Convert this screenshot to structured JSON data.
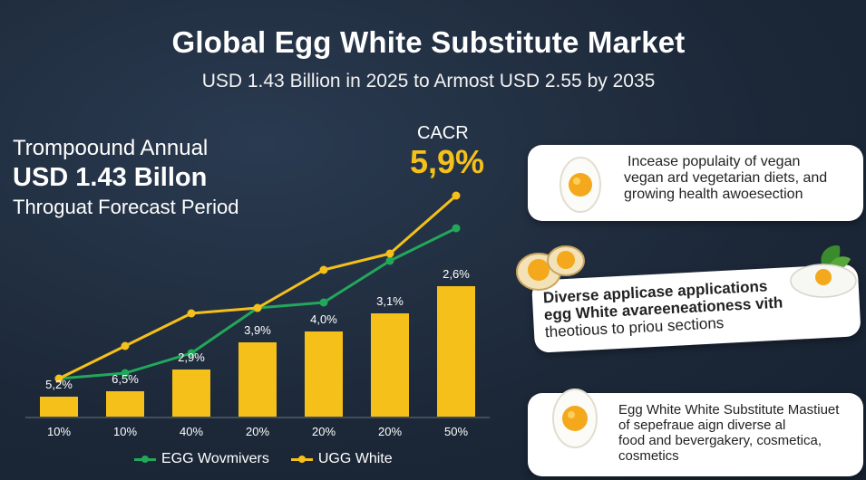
{
  "header": {
    "title": "Global Egg White Substitute Market",
    "subtitle": "USD 1.43 Billion in 2025 to Armost USD 2.55 by 2035"
  },
  "left_panel": {
    "line1": "Trompoound Annual",
    "line2": "USD 1.43 Billon",
    "line3": "Throguat Forecast Period"
  },
  "cagr": {
    "label": "CACR",
    "value": "5,9%"
  },
  "cards": [
    {
      "text_lines": [
        "Incease populaity of vegan",
        "vegan ard vegetarian diets,  and",
        "growing health awoesection"
      ]
    },
    {
      "text_lines": [
        "Diverse applicase applications",
        "egg White avareeneationess vith",
        "theotious to priou sections"
      ]
    },
    {
      "text_lines": [
        "Egg White White Substitute Mastiuet",
        "of sepefraue aign diverse al",
        "food and bevergakery, cosmetica,",
        "cosmetics"
      ]
    }
  ],
  "legend": {
    "series1": "EGG Wovmivers",
    "series2": "UGG White"
  },
  "colors": {
    "gold": "#f5c01a",
    "green": "#22a85a",
    "navy": "#1c2838"
  },
  "chart_data": {
    "type": "bar",
    "categories": [
      "10%",
      "10%",
      "40%",
      "20%",
      "20%",
      "20%",
      "50%"
    ],
    "bar_labels": [
      "5,2%",
      "6,5%",
      "2,9%",
      "3,9%",
      "4,0%",
      "3,1%",
      "2,6%"
    ],
    "values": [
      1.1,
      1.4,
      2.6,
      4.1,
      4.7,
      5.7,
      7.2
    ],
    "ylim": [
      0,
      13
    ],
    "series": [
      {
        "name": "EGG Wovmivers",
        "color": "#22a85a",
        "values": [
          2.1,
          2.4,
          3.5,
          6.0,
          6.3,
          8.6,
          10.4
        ]
      },
      {
        "name": "UGG White",
        "color": "#f5c01a",
        "values": [
          2.1,
          3.9,
          5.7,
          6.0,
          8.1,
          9.0,
          12.2
        ]
      }
    ]
  }
}
